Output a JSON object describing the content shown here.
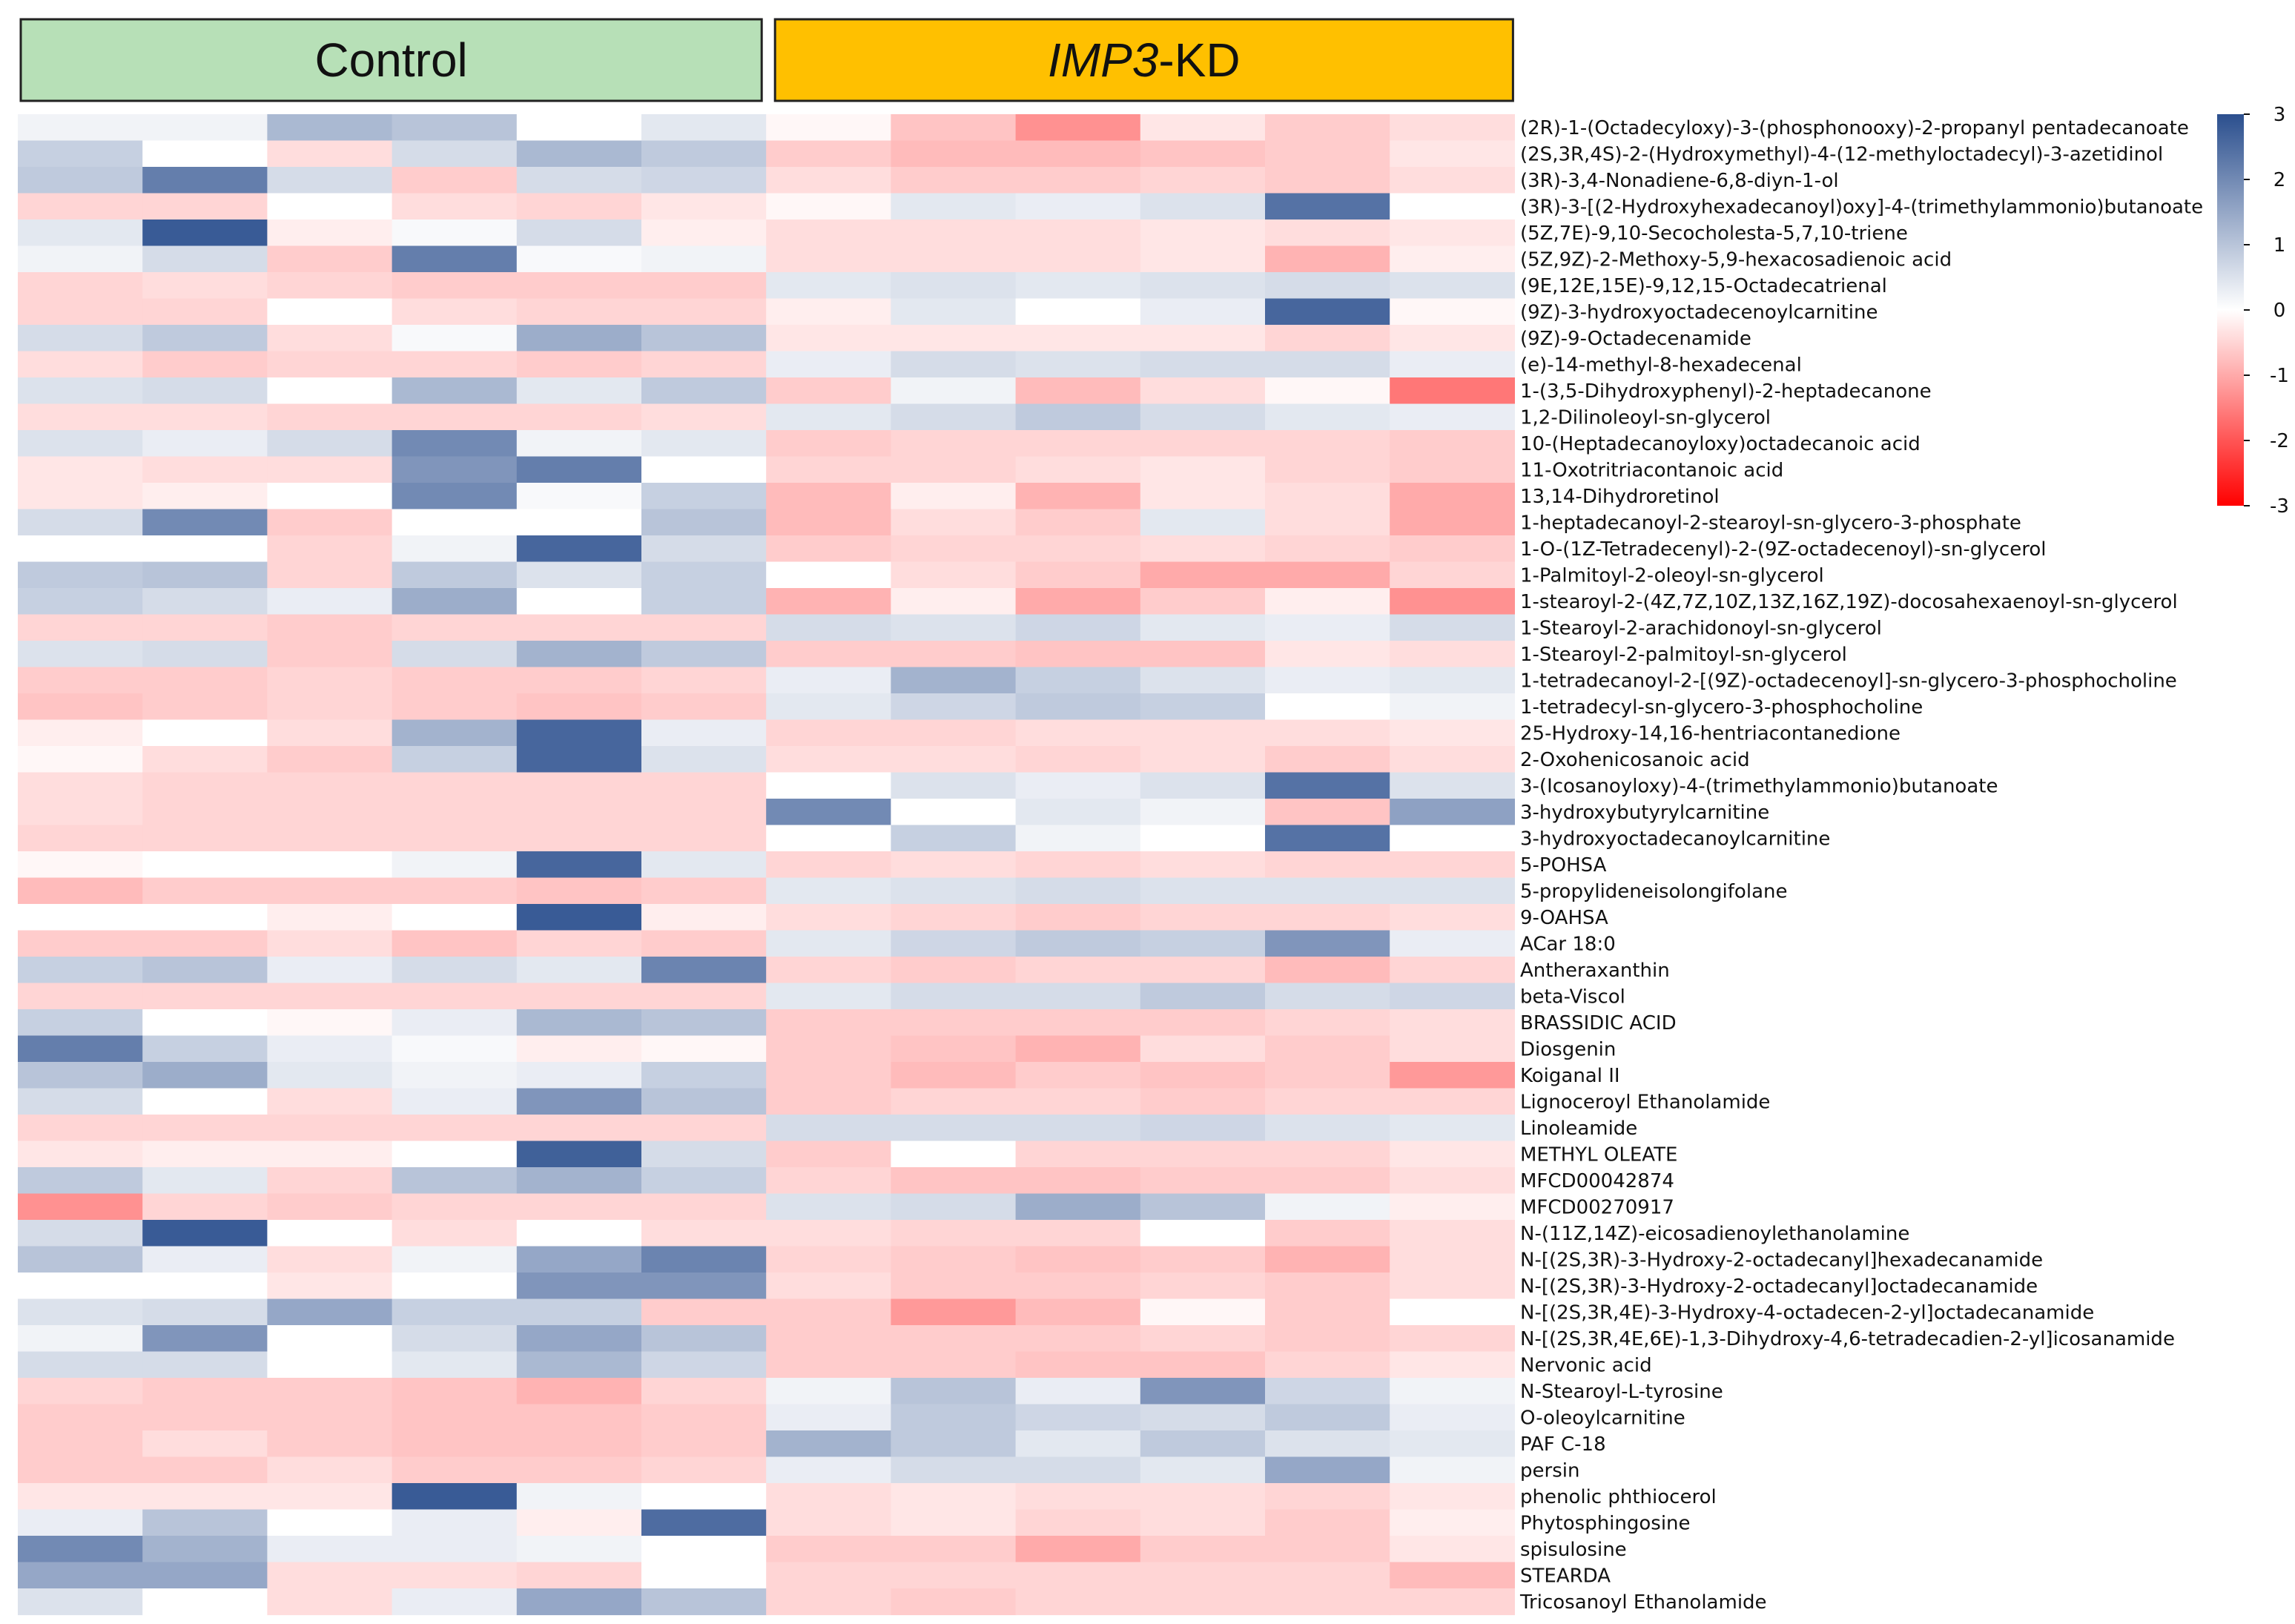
{
  "chart_data": {
    "type": "heatmap",
    "groups": [
      {
        "label_parts": [
          {
            "text": "Control",
            "italic": false
          }
        ],
        "fill": "#b7e0b7",
        "columns": 6
      },
      {
        "label_parts": [
          {
            "text": "IMP3",
            "italic": true
          },
          {
            "text": "-KD",
            "italic": false
          }
        ],
        "fill": "#ffc000",
        "columns": 6
      }
    ],
    "colorscale": {
      "min": -3,
      "max": 3,
      "low": "#ff0000",
      "mid": "#ffffff",
      "high": "#2b4f8e",
      "ticks": [
        "3",
        "2",
        "1",
        "0",
        "-1",
        "-2",
        "-3"
      ]
    },
    "rows": [
      "(2R)-1-(Octadecyloxy)-3-(phosphonooxy)-2-propanyl pentadecanoate",
      "(2S,3R,4S)-2-(Hydroxymethyl)-4-(12-methyloctadecyl)-3-azetidinol",
      "(3R)-3,4-Nonadiene-6,8-diyn-1-ol",
      "(3R)-3-[(2-Hydroxyhexadecanoyl)oxy]-4-(trimethylammonio)butanoate",
      "(5Z,7E)-9,10-Secocholesta-5,7,10-triene",
      "(5Z,9Z)-2-Methoxy-5,9-hexacosadienoic acid",
      "(9E,12E,15E)-9,12,15-Octadecatrienal",
      "(9Z)-3-hydroxyoctadecenoylcarnitine",
      "(9Z)-9-Octadecenamide",
      "(e)-14-methyl-8-hexadecenal",
      "1-(3,5-Dihydroxyphenyl)-2-heptadecanone",
      "1,2-Dilinoleoyl-sn-glycerol",
      "10-(Heptadecanoyloxy)octadecanoic acid",
      "11-Oxotritriacontanoic acid",
      "13,14-Dihydroretinol",
      "1-heptadecanoyl-2-stearoyl-sn-glycero-3-phosphate",
      "1-O-(1Z-Tetradecenyl)-2-(9Z-octadecenoyl)-sn-glycerol",
      "1-Palmitoyl-2-oleoyl-sn-glycerol",
      "1-stearoyl-2-(4Z,7Z,10Z,13Z,16Z,19Z)-docosahexaenoyl-sn-glycerol",
      "1-Stearoyl-2-arachidonoyl-sn-glycerol",
      "1-Stearoyl-2-palmitoyl-sn-glycerol",
      "1-tetradecanoyl-2-[(9Z)-octadecenoyl]-sn-glycero-3-phosphocholine",
      "1-tetradecyl-sn-glycero-3-phosphocholine",
      "25-Hydroxy-14,16-hentriacontanedione",
      "2-Oxohenicosanoic acid",
      "3-(Icosanoyloxy)-4-(trimethylammonio)butanoate",
      "3-hydroxybutyrylcarnitine",
      "3-hydroxyoctadecanoylcarnitine",
      "5-POHSA",
      "5-propylideneisolongifolane",
      "9-OAHSA",
      "ACar 18:0",
      "Antheraxanthin",
      "beta-Viscol",
      "BRASSIDIC ACID",
      "Diosgenin",
      "Koiganal II",
      "Lignoceroyl Ethanolamide",
      "Linoleamide",
      "METHYL OLEATE",
      "MFCD00042874",
      "MFCD00270917",
      "N-(11Z,14Z)-eicosadienoylethanolamine",
      "N-[(2S,3R)-3-Hydroxy-2-octadecanyl]hexadecanamide",
      "N-[(2S,3R)-3-Hydroxy-2-octadecanyl]octadecanamide",
      "N-[(2S,3R,4E)-3-Hydroxy-4-octadecen-2-yl]octadecanamide",
      "N-[(2S,3R,4E,6E)-1,3-Dihydroxy-4,6-tetradecadien-2-yl]icosanamide",
      "Nervonic acid",
      "N-Stearoyl-L-tyrosine",
      "O-oleoylcarnitine",
      "PAF C-18",
      "persin",
      "phenolic phthiocerol",
      "Phytosphingosine",
      "spisulosine",
      "STEARDA",
      "Tricosanoyl Ethanolamide"
    ],
    "values": [
      [
        0.2,
        0.2,
        1.2,
        1.0,
        0.0,
        0.4,
        -0.1,
        -0.7,
        -1.3,
        -0.3,
        -0.6,
        -0.4
      ],
      [
        0.8,
        0.0,
        -0.4,
        0.6,
        1.2,
        0.9,
        -0.6,
        -0.8,
        -0.8,
        -0.7,
        -0.6,
        -0.3
      ],
      [
        0.9,
        2.2,
        0.6,
        -0.6,
        0.6,
        0.7,
        -0.4,
        -0.6,
        -0.6,
        -0.5,
        -0.6,
        -0.4
      ],
      [
        -0.5,
        -0.5,
        0.0,
        -0.4,
        -0.5,
        -0.3,
        -0.1,
        0.4,
        0.3,
        0.5,
        2.4,
        0.0
      ],
      [
        0.4,
        2.8,
        -0.2,
        0.1,
        0.6,
        -0.2,
        -0.4,
        -0.4,
        -0.4,
        -0.3,
        -0.4,
        -0.3
      ],
      [
        0.2,
        0.6,
        -0.6,
        2.2,
        0.1,
        0.2,
        -0.4,
        -0.4,
        -0.4,
        -0.3,
        -0.9,
        -0.2
      ],
      [
        -0.5,
        -0.4,
        -0.5,
        -0.6,
        -0.6,
        -0.6,
        0.4,
        0.5,
        0.4,
        0.5,
        0.6,
        0.5
      ],
      [
        -0.5,
        -0.5,
        0.0,
        -0.4,
        -0.5,
        -0.5,
        -0.2,
        0.4,
        0.0,
        0.3,
        2.6,
        -0.1
      ],
      [
        0.6,
        0.9,
        -0.4,
        0.1,
        1.4,
        1.0,
        -0.3,
        -0.3,
        -0.3,
        -0.3,
        -0.5,
        -0.3
      ],
      [
        -0.4,
        -0.6,
        -0.5,
        -0.5,
        -0.6,
        -0.5,
        0.3,
        0.6,
        0.5,
        0.6,
        0.6,
        0.3
      ],
      [
        0.5,
        0.6,
        0.0,
        1.2,
        0.4,
        0.9,
        -0.6,
        0.2,
        -0.8,
        -0.4,
        -0.1,
        -1.6
      ],
      [
        -0.4,
        -0.4,
        -0.5,
        -0.5,
        -0.5,
        -0.4,
        0.4,
        0.6,
        0.9,
        0.6,
        0.4,
        0.3
      ],
      [
        0.5,
        0.3,
        0.6,
        2.0,
        0.2,
        0.4,
        -0.6,
        -0.5,
        -0.5,
        -0.5,
        -0.5,
        -0.6
      ],
      [
        -0.3,
        -0.4,
        -0.4,
        1.8,
        2.2,
        0.0,
        -0.5,
        -0.5,
        -0.4,
        -0.3,
        -0.5,
        -0.6
      ],
      [
        -0.3,
        -0.2,
        0.0,
        2.0,
        0.1,
        0.8,
        -0.8,
        -0.2,
        -0.9,
        -0.3,
        -0.4,
        -1.0
      ],
      [
        0.6,
        2.0,
        -0.6,
        0.0,
        0.0,
        1.0,
        -0.8,
        -0.4,
        -0.6,
        0.4,
        -0.4,
        -1.0
      ],
      [
        0.0,
        0.0,
        -0.5,
        0.2,
        2.6,
        0.6,
        -0.6,
        -0.5,
        -0.5,
        -0.4,
        -0.5,
        -0.6
      ],
      [
        0.9,
        1.0,
        -0.5,
        0.9,
        0.5,
        0.8,
        0.0,
        -0.4,
        -0.6,
        -1.0,
        -1.0,
        -0.5
      ],
      [
        0.8,
        0.6,
        0.3,
        1.4,
        0.0,
        0.8,
        -0.9,
        -0.2,
        -1.0,
        -0.6,
        -0.2,
        -1.3
      ],
      [
        -0.5,
        -0.5,
        -0.6,
        -0.5,
        -0.5,
        -0.5,
        0.6,
        0.5,
        0.7,
        0.4,
        0.3,
        0.6
      ],
      [
        0.5,
        0.6,
        -0.6,
        0.6,
        1.3,
        0.9,
        -0.6,
        -0.6,
        -0.7,
        -0.7,
        -0.3,
        -0.4
      ],
      [
        -0.6,
        -0.6,
        -0.5,
        -0.6,
        -0.6,
        -0.5,
        0.3,
        1.3,
        0.8,
        0.5,
        0.3,
        0.4
      ],
      [
        -0.7,
        -0.6,
        -0.5,
        -0.6,
        -0.7,
        -0.6,
        0.4,
        0.7,
        0.9,
        0.8,
        0.0,
        0.2
      ],
      [
        -0.2,
        0.0,
        -0.4,
        1.3,
        2.6,
        0.3,
        -0.5,
        -0.5,
        -0.4,
        -0.4,
        -0.4,
        -0.3
      ],
      [
        -0.1,
        -0.4,
        -0.6,
        0.8,
        2.6,
        0.5,
        -0.4,
        -0.4,
        -0.5,
        -0.4,
        -0.6,
        -0.4
      ],
      [
        -0.4,
        -0.5,
        -0.5,
        -0.5,
        -0.5,
        -0.5,
        0.0,
        0.5,
        0.3,
        0.5,
        2.4,
        0.5
      ],
      [
        -0.4,
        -0.5,
        -0.5,
        -0.5,
        -0.5,
        -0.5,
        2.0,
        0.0,
        0.4,
        0.2,
        -0.7,
        1.6
      ],
      [
        -0.5,
        -0.5,
        -0.5,
        -0.5,
        -0.5,
        -0.5,
        0.0,
        0.8,
        0.2,
        0.0,
        2.4,
        0.0
      ],
      [
        -0.1,
        0.0,
        0.0,
        0.2,
        2.6,
        0.4,
        -0.5,
        -0.4,
        -0.5,
        -0.4,
        -0.5,
        -0.5
      ],
      [
        -0.8,
        -0.6,
        -0.6,
        -0.6,
        -0.7,
        -0.6,
        0.4,
        0.5,
        0.6,
        0.5,
        0.5,
        0.5
      ],
      [
        0.0,
        0.0,
        -0.2,
        0.0,
        2.8,
        -0.2,
        -0.4,
        -0.5,
        -0.6,
        -0.5,
        -0.5,
        -0.4
      ],
      [
        -0.6,
        -0.6,
        -0.4,
        -0.7,
        -0.5,
        -0.6,
        0.4,
        0.7,
        0.9,
        0.8,
        1.8,
        0.3
      ],
      [
        0.8,
        1.0,
        0.3,
        0.6,
        0.4,
        2.1,
        -0.5,
        -0.6,
        -0.5,
        -0.5,
        -0.8,
        -0.5
      ],
      [
        -0.5,
        -0.5,
        -0.5,
        -0.5,
        -0.5,
        -0.5,
        0.4,
        0.6,
        0.6,
        0.9,
        0.6,
        0.7
      ],
      [
        0.8,
        0.0,
        -0.1,
        0.3,
        1.2,
        1.0,
        -0.6,
        -0.6,
        -0.6,
        -0.6,
        -0.5,
        -0.4
      ],
      [
        2.2,
        0.8,
        0.3,
        0.1,
        -0.2,
        -0.1,
        -0.6,
        -0.7,
        -0.9,
        -0.4,
        -0.6,
        -0.4
      ],
      [
        1.0,
        1.4,
        0.4,
        0.2,
        0.3,
        0.8,
        -0.6,
        -0.8,
        -0.6,
        -0.7,
        -0.6,
        -1.2
      ],
      [
        0.6,
        0.0,
        -0.4,
        0.3,
        1.8,
        1.0,
        -0.6,
        -0.5,
        -0.5,
        -0.6,
        -0.5,
        -0.5
      ],
      [
        -0.5,
        -0.5,
        -0.5,
        -0.5,
        -0.5,
        -0.5,
        0.6,
        0.6,
        0.6,
        0.7,
        0.5,
        0.4
      ],
      [
        -0.3,
        -0.2,
        -0.2,
        0.0,
        2.7,
        0.6,
        -0.6,
        0.0,
        -0.5,
        -0.5,
        -0.5,
        -0.3
      ],
      [
        0.9,
        0.4,
        -0.5,
        1.0,
        1.3,
        0.8,
        -0.5,
        -0.7,
        -0.7,
        -0.6,
        -0.6,
        -0.4
      ],
      [
        -1.3,
        -0.5,
        -0.6,
        -0.5,
        -0.5,
        -0.5,
        0.5,
        0.6,
        1.4,
        1.0,
        0.2,
        -0.2
      ],
      [
        0.6,
        2.8,
        0.0,
        -0.4,
        0.0,
        -0.4,
        -0.4,
        -0.5,
        -0.5,
        0.0,
        -0.6,
        -0.4
      ],
      [
        1.0,
        0.3,
        -0.4,
        0.2,
        1.5,
        2.1,
        -0.5,
        -0.6,
        -0.7,
        -0.6,
        -0.9,
        -0.4
      ],
      [
        0.0,
        0.0,
        -0.3,
        0.0,
        1.8,
        1.8,
        -0.4,
        -0.6,
        -0.6,
        -0.5,
        -0.6,
        -0.4
      ],
      [
        0.5,
        0.6,
        1.5,
        0.8,
        0.8,
        -0.6,
        -0.6,
        -1.2,
        -0.8,
        -0.1,
        -0.6,
        0.0
      ],
      [
        0.2,
        1.8,
        0.0,
        0.6,
        1.5,
        1.0,
        -0.6,
        -0.6,
        -0.6,
        -0.5,
        -0.6,
        -0.5
      ],
      [
        0.6,
        0.6,
        0.0,
        0.4,
        1.2,
        0.7,
        -0.6,
        -0.6,
        -0.7,
        -0.7,
        -0.5,
        -0.3
      ],
      [
        -0.5,
        -0.6,
        -0.6,
        -0.7,
        -0.9,
        -0.5,
        0.2,
        1.0,
        0.3,
        1.8,
        0.7,
        0.2
      ],
      [
        -0.6,
        -0.6,
        -0.6,
        -0.7,
        -0.7,
        -0.6,
        0.3,
        0.9,
        0.7,
        0.6,
        0.9,
        0.3
      ],
      [
        -0.6,
        -0.4,
        -0.6,
        -0.7,
        -0.7,
        -0.6,
        1.3,
        0.9,
        0.4,
        0.9,
        0.5,
        0.4
      ],
      [
        -0.6,
        -0.6,
        -0.4,
        -0.6,
        -0.6,
        -0.5,
        0.3,
        0.6,
        0.6,
        0.4,
        1.5,
        0.2
      ],
      [
        -0.3,
        -0.3,
        -0.3,
        2.8,
        0.2,
        0.0,
        -0.4,
        -0.3,
        -0.4,
        -0.4,
        -0.5,
        -0.3
      ],
      [
        0.3,
        1.0,
        0.0,
        0.3,
        -0.2,
        2.5,
        -0.4,
        -0.3,
        -0.5,
        -0.4,
        -0.6,
        -0.2
      ],
      [
        2.0,
        1.3,
        0.3,
        0.3,
        0.2,
        0.0,
        -0.6,
        -0.6,
        -1.0,
        -0.6,
        -0.6,
        -0.3
      ],
      [
        1.5,
        1.5,
        -0.4,
        -0.4,
        -0.5,
        0.0,
        -0.5,
        -0.5,
        -0.5,
        -0.5,
        -0.5,
        -0.8
      ],
      [
        0.5,
        0.0,
        -0.4,
        0.3,
        1.5,
        1.0,
        -0.5,
        -0.6,
        -0.5,
        -0.5,
        -0.5,
        -0.5
      ]
    ]
  }
}
